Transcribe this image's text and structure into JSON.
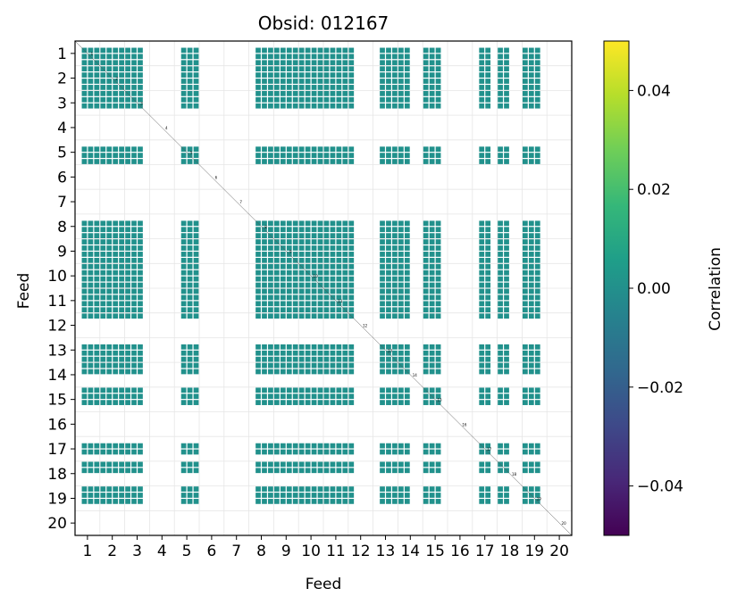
{
  "chart_data": {
    "type": "heatmap",
    "title": "Obsid: 012167",
    "xlabel": "Feed",
    "ylabel": "Feed",
    "x_categories": [
      "1",
      "2",
      "3",
      "4",
      "5",
      "6",
      "7",
      "8",
      "9",
      "10",
      "11",
      "12",
      "13",
      "14",
      "15",
      "16",
      "17",
      "18",
      "19",
      "20"
    ],
    "y_categories": [
      "1",
      "2",
      "3",
      "4",
      "5",
      "6",
      "7",
      "8",
      "9",
      "10",
      "11",
      "12",
      "13",
      "14",
      "15",
      "16",
      "17",
      "18",
      "19",
      "20"
    ],
    "subgrid_per_feed": 4,
    "feeds_with_data": [
      1,
      2,
      3,
      5,
      8,
      9,
      10,
      11,
      12,
      13,
      14,
      15,
      17,
      18,
      19
    ],
    "active_feed_sub_columns": {
      "1": [
        1,
        2,
        3
      ],
      "2": [
        0,
        1,
        2,
        3
      ],
      "3": [
        0,
        1,
        2
      ],
      "5": [
        1,
        2,
        3
      ],
      "8": [
        1,
        2,
        3
      ],
      "9": [
        0,
        1,
        2,
        3
      ],
      "10": [
        0,
        1,
        2,
        3
      ],
      "11": [
        0,
        1,
        2,
        3
      ],
      "12": [
        0
      ],
      "13": [
        1,
        2,
        3
      ],
      "14": [
        0,
        1
      ],
      "15": [
        0,
        1,
        2
      ],
      "17": [
        1,
        2
      ],
      "18": [
        0,
        1
      ],
      "19": [
        0,
        1,
        2
      ]
    },
    "cell_value": 0.0,
    "cell_color": "#21918c",
    "diagonal_labels": [
      "1",
      "2",
      "3",
      "4",
      "5",
      "6",
      "7",
      "8",
      "9",
      "10",
      "11",
      "12",
      "13",
      "14",
      "15",
      "16",
      "17",
      "18",
      "19",
      "20"
    ],
    "grid": true,
    "colorbar": {
      "label": "Correlation",
      "range": [
        -0.05,
        0.05
      ],
      "ticks": [
        0.04,
        0.02,
        0.0,
        -0.02,
        -0.04
      ],
      "tick_labels": [
        "0.04",
        "0.02",
        "0.00",
        "−0.02",
        "−0.04"
      ],
      "colormap": "viridis",
      "colormap_stops": [
        "#440154",
        "#482878",
        "#3e4989",
        "#31688e",
        "#26828e",
        "#1f9e89",
        "#35b779",
        "#6ece58",
        "#b5de2b",
        "#fde725"
      ],
      "position": "right"
    }
  }
}
